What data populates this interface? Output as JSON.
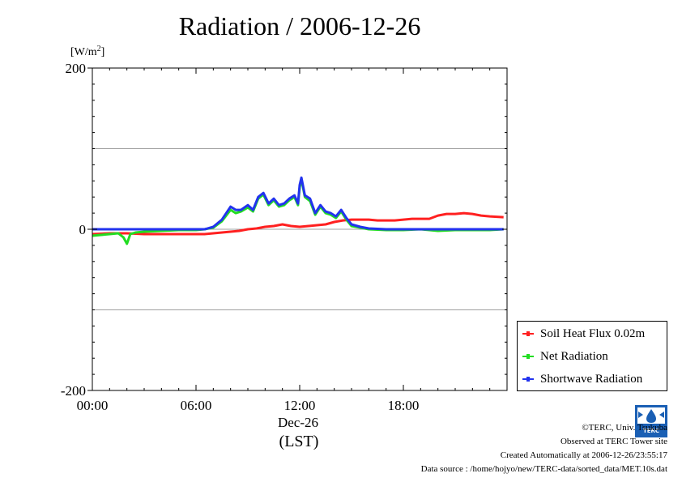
{
  "title": "Radiation / 2006-12-26",
  "unit_label": "[W/m",
  "unit_sup": "2",
  "unit_close": "]",
  "date_label": "Dec-26",
  "tz_label": "(LST)",
  "footer": {
    "copyright": "©TERC, Univ. Tsukuba",
    "observed": "Observed at TERC Tower site",
    "created": "Created Automatically at 2006-12-26/23:55:17",
    "source": "Data source : /home/hojyo/new/TERC-data/sorted_data/MET.10s.dat"
  },
  "logo_text": "TERC",
  "chart_data": {
    "type": "line",
    "title": "Radiation / 2006-12-26",
    "ylabel": "[W/m2]",
    "xlabel": "(LST)",
    "ylim": [
      -200,
      200
    ],
    "xlim": [
      0,
      24
    ],
    "y_ticks": [
      {
        "value": 200,
        "label": "200"
      },
      {
        "value": 0,
        "label": "0"
      },
      {
        "value": -200,
        "label": "-200"
      }
    ],
    "x_ticks": [
      {
        "value": 0,
        "label": "00:00"
      },
      {
        "value": 6,
        "label": "06:00"
      },
      {
        "value": 12,
        "label": "12:00"
      },
      {
        "value": 18,
        "label": "18:00"
      }
    ],
    "grid_y": [
      100,
      0,
      -100
    ],
    "legend_position": "bottom-right outside",
    "series": [
      {
        "name": "Soil Heat Flux 0.02m",
        "color": "#ff2020",
        "points": [
          [
            0,
            -6
          ],
          [
            1,
            -5
          ],
          [
            2,
            -5
          ],
          [
            3,
            -6
          ],
          [
            4,
            -6
          ],
          [
            5,
            -6
          ],
          [
            6,
            -6
          ],
          [
            6.5,
            -6
          ],
          [
            7,
            -5
          ],
          [
            7.5,
            -4
          ],
          [
            8,
            -3
          ],
          [
            8.5,
            -2
          ],
          [
            9,
            0
          ],
          [
            9.5,
            1
          ],
          [
            10,
            3
          ],
          [
            10.5,
            4
          ],
          [
            11,
            6
          ],
          [
            11.5,
            4
          ],
          [
            12,
            3
          ],
          [
            12.5,
            4
          ],
          [
            13,
            5
          ],
          [
            13.5,
            6
          ],
          [
            14,
            9
          ],
          [
            14.5,
            11
          ],
          [
            15,
            12
          ],
          [
            15.5,
            12
          ],
          [
            16,
            12
          ],
          [
            16.5,
            11
          ],
          [
            17,
            11
          ],
          [
            17.5,
            11
          ],
          [
            18,
            12
          ],
          [
            18.5,
            13
          ],
          [
            19,
            13
          ],
          [
            19.5,
            13
          ],
          [
            20,
            17
          ],
          [
            20.5,
            19
          ],
          [
            21,
            19
          ],
          [
            21.5,
            20
          ],
          [
            22,
            19
          ],
          [
            22.5,
            17
          ],
          [
            23,
            16
          ],
          [
            23.8,
            15
          ]
        ]
      },
      {
        "name": "Net Radiation",
        "color": "#22dd22",
        "points": [
          [
            0,
            -8
          ],
          [
            0.5,
            -7
          ],
          [
            1,
            -6
          ],
          [
            1.5,
            -5
          ],
          [
            1.8,
            -10
          ],
          [
            2,
            -18
          ],
          [
            2.2,
            -6
          ],
          [
            2.5,
            -4
          ],
          [
            3,
            -3
          ],
          [
            4,
            -2
          ],
          [
            5,
            -1
          ],
          [
            6,
            -1
          ],
          [
            6.5,
            0
          ],
          [
            7,
            2
          ],
          [
            7.5,
            10
          ],
          [
            8,
            24
          ],
          [
            8.3,
            20
          ],
          [
            8.6,
            22
          ],
          [
            9,
            27
          ],
          [
            9.3,
            22
          ],
          [
            9.6,
            38
          ],
          [
            9.9,
            43
          ],
          [
            10.2,
            30
          ],
          [
            10.5,
            36
          ],
          [
            10.8,
            28
          ],
          [
            11.1,
            30
          ],
          [
            11.4,
            36
          ],
          [
            11.7,
            40
          ],
          [
            11.9,
            30
          ],
          [
            12,
            52
          ],
          [
            12.1,
            62
          ],
          [
            12.3,
            40
          ],
          [
            12.6,
            35
          ],
          [
            12.9,
            18
          ],
          [
            13.2,
            28
          ],
          [
            13.5,
            20
          ],
          [
            13.8,
            18
          ],
          [
            14.1,
            14
          ],
          [
            14.4,
            22
          ],
          [
            14.7,
            12
          ],
          [
            15,
            4
          ],
          [
            15.5,
            2
          ],
          [
            16,
            0
          ],
          [
            17,
            -1
          ],
          [
            18,
            -1
          ],
          [
            19,
            0
          ],
          [
            19.5,
            -1
          ],
          [
            20,
            -2
          ],
          [
            21,
            -1
          ],
          [
            22,
            -1
          ],
          [
            23,
            -1
          ],
          [
            23.8,
            0
          ]
        ]
      },
      {
        "name": "Shortwave Radiation",
        "color": "#2233ee",
        "points": [
          [
            0,
            0
          ],
          [
            1,
            0
          ],
          [
            2,
            0
          ],
          [
            3,
            0
          ],
          [
            4,
            0
          ],
          [
            5,
            0
          ],
          [
            6,
            0
          ],
          [
            6.5,
            0
          ],
          [
            7,
            3
          ],
          [
            7.5,
            12
          ],
          [
            8,
            28
          ],
          [
            8.3,
            24
          ],
          [
            8.6,
            24
          ],
          [
            9,
            30
          ],
          [
            9.3,
            24
          ],
          [
            9.6,
            40
          ],
          [
            9.9,
            45
          ],
          [
            10.2,
            32
          ],
          [
            10.5,
            38
          ],
          [
            10.8,
            30
          ],
          [
            11.1,
            32
          ],
          [
            11.4,
            38
          ],
          [
            11.7,
            42
          ],
          [
            11.9,
            32
          ],
          [
            12,
            55
          ],
          [
            12.1,
            64
          ],
          [
            12.3,
            42
          ],
          [
            12.6,
            38
          ],
          [
            12.9,
            20
          ],
          [
            13.2,
            30
          ],
          [
            13.5,
            22
          ],
          [
            13.8,
            20
          ],
          [
            14.1,
            16
          ],
          [
            14.4,
            24
          ],
          [
            14.7,
            14
          ],
          [
            15,
            6
          ],
          [
            15.5,
            3
          ],
          [
            16,
            1
          ],
          [
            17,
            0
          ],
          [
            18,
            0
          ],
          [
            19,
            0
          ],
          [
            20,
            0
          ],
          [
            21,
            0
          ],
          [
            22,
            0
          ],
          [
            23,
            0
          ],
          [
            23.8,
            0
          ]
        ]
      }
    ]
  }
}
